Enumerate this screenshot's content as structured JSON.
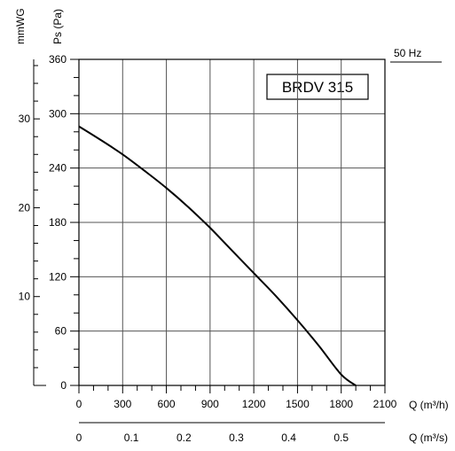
{
  "chart_data": {
    "type": "line",
    "title": "BRDV 315",
    "frequency_label": "50 Hz",
    "x_axis": {
      "label": "Q (m³/h)",
      "range": [
        0,
        2100
      ],
      "ticks": [
        0,
        300,
        600,
        900,
        1200,
        1500,
        1800,
        2100
      ]
    },
    "x2_axis": {
      "label": "Q (m³/s)",
      "range": [
        0,
        0.5833
      ],
      "ticks": [
        "0",
        "0.1",
        "0.2",
        "0.3",
        "0.4",
        "0.5"
      ],
      "tick_values": [
        0,
        0.1,
        0.2,
        0.3,
        0.4,
        0.5
      ]
    },
    "y_axis": {
      "label": "Ps (Pa)",
      "range": [
        0,
        360
      ],
      "ticks": [
        0,
        60,
        120,
        180,
        240,
        300,
        360
      ]
    },
    "y2_axis": {
      "label": "mmWG",
      "range": [
        0,
        36.7
      ],
      "ticks": [
        10,
        20,
        30
      ]
    },
    "grid": true,
    "series": [
      {
        "x": [
          0,
          150,
          300,
          450,
          600,
          750,
          900,
          1050,
          1200,
          1350,
          1500,
          1650,
          1800,
          1900
        ],
        "y": [
          286,
          271,
          255,
          237,
          218,
          197,
          174,
          149,
          124,
          99,
          72,
          43,
          12,
          0
        ]
      }
    ]
  }
}
